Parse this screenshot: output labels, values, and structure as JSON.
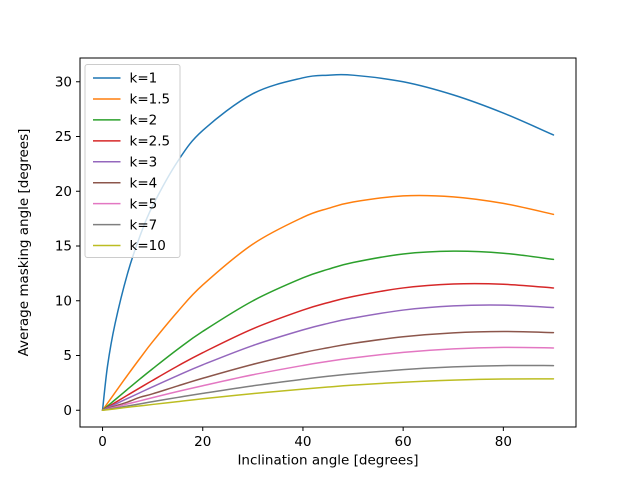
{
  "window": {
    "background": "#ffffff"
  },
  "chart_data": {
    "type": "line",
    "title": "",
    "xlabel": "Inclination angle [degrees]",
    "ylabel": "Average masking angle [degrees]",
    "xlim": [
      -4.5,
      94.5
    ],
    "ylim": [
      -1.53,
      32.17
    ],
    "xticks": [
      0,
      20,
      40,
      60,
      80
    ],
    "yticks": [
      0,
      5,
      10,
      15,
      20,
      25,
      30
    ],
    "grid": false,
    "legend": {
      "position": "upper left",
      "border_color": "#cccccc",
      "background": "rgba(255,255,255,0.8)"
    },
    "x": [
      0,
      1,
      2.5,
      5,
      7.5,
      10,
      15,
      20,
      30,
      40,
      45,
      50,
      60,
      70,
      80,
      90
    ],
    "series": [
      {
        "name": "k=1",
        "color": "#1f77b4",
        "values": [
          0,
          4.06,
          7.91,
          12.51,
          15.95,
          18.67,
          22.73,
          25.55,
          28.91,
          30.36,
          30.6,
          30.6,
          30.0,
          28.8,
          27.14,
          25.14
        ]
      },
      {
        "name": "k=1.5",
        "color": "#ff7f0e",
        "values": [
          0,
          0.65,
          1.62,
          3.21,
          4.76,
          6.26,
          9.01,
          11.44,
          15.17,
          17.62,
          18.43,
          19.02,
          19.58,
          19.49,
          18.89,
          17.89
        ]
      },
      {
        "name": "k=2",
        "color": "#2ca02c",
        "values": [
          0,
          0.39,
          0.96,
          1.92,
          2.87,
          3.79,
          5.57,
          7.2,
          9.99,
          12.09,
          12.87,
          13.49,
          14.27,
          14.53,
          14.34,
          13.78
        ]
      },
      {
        "name": "k=2.5",
        "color": "#d62728",
        "values": [
          0,
          0.28,
          0.69,
          1.38,
          2.06,
          2.73,
          4.04,
          5.26,
          7.44,
          9.15,
          9.83,
          10.39,
          11.17,
          11.53,
          11.51,
          11.17
        ]
      },
      {
        "name": "k=3",
        "color": "#9467bd",
        "values": [
          0,
          0.22,
          0.54,
          1.08,
          1.61,
          2.14,
          3.17,
          4.15,
          5.91,
          7.34,
          7.93,
          8.42,
          9.15,
          9.53,
          9.6,
          9.38
        ]
      },
      {
        "name": "k=4",
        "color": "#8c564b",
        "values": [
          0,
          0.15,
          0.38,
          0.75,
          1.19,
          1.5,
          2.22,
          2.92,
          4.19,
          5.26,
          5.71,
          6.11,
          6.71,
          7.07,
          7.19,
          7.09
        ]
      },
      {
        "name": "k=5",
        "color": "#e377c2",
        "values": [
          0,
          0.12,
          0.29,
          0.58,
          0.86,
          1.15,
          1.71,
          2.24,
          3.24,
          4.09,
          4.46,
          4.78,
          5.29,
          5.61,
          5.74,
          5.69
        ]
      },
      {
        "name": "k=7",
        "color": "#7f7f7f",
        "values": [
          0,
          0.08,
          0.2,
          0.39,
          0.58,
          0.79,
          1.17,
          1.54,
          2.23,
          2.83,
          3.1,
          3.33,
          3.71,
          3.96,
          4.08,
          4.08
        ]
      },
      {
        "name": "k=10",
        "color": "#bcbd22",
        "values": [
          0,
          0.05,
          0.13,
          0.27,
          0.4,
          0.53,
          0.79,
          1.05,
          1.52,
          1.93,
          2.12,
          2.29,
          2.56,
          2.75,
          2.85,
          2.86
        ]
      }
    ]
  }
}
